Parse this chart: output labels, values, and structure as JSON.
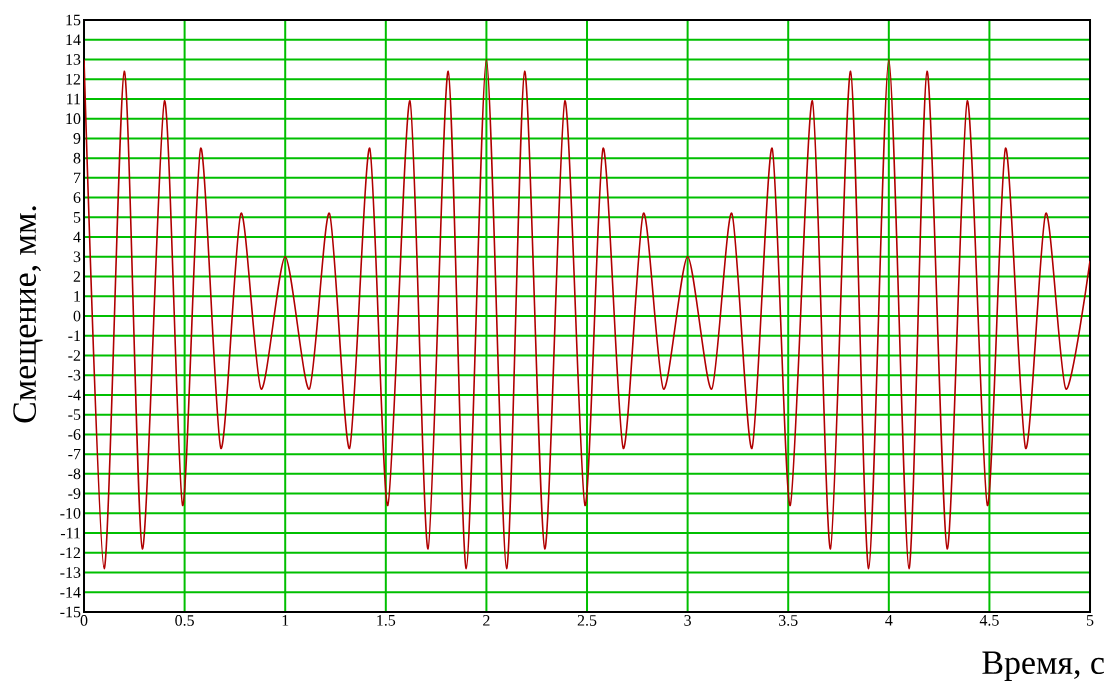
{
  "chart_data": {
    "type": "line",
    "xlabel": "Время, с",
    "ylabel": "Смещение, мм.",
    "xlim": [
      0,
      5
    ],
    "ylim": [
      -15,
      15
    ],
    "xticks": [
      0,
      0.5,
      1,
      1.5,
      2,
      2.5,
      3,
      3.5,
      4,
      4.5,
      5
    ],
    "yticks": [
      -15,
      -14,
      -13,
      -12,
      -11,
      -10,
      -9,
      -8,
      -7,
      -6,
      -5,
      -4,
      -3,
      -2,
      -1,
      0,
      1,
      2,
      3,
      4,
      5,
      6,
      7,
      8,
      9,
      10,
      11,
      12,
      13,
      14,
      15
    ],
    "grid": true,
    "marker": "none",
    "line_style": "solid",
    "series": [
      {
        "color": "#b00000",
        "x": [
          0,
          0.1,
          0.2,
          0.29,
          0.4,
          0.49,
          0.58,
          0.68,
          0.78,
          0.88,
          1.0,
          1.12,
          1.22,
          1.32,
          1.42,
          1.51,
          1.62,
          1.71,
          1.81,
          1.9,
          2.0,
          2.1,
          2.19,
          2.29,
          2.39,
          2.49,
          2.58,
          2.68,
          2.78,
          2.88,
          3.0,
          3.12,
          3.22,
          3.32,
          3.42,
          3.51,
          3.62,
          3.71,
          3.81,
          3.9,
          4.0,
          4.1,
          4.19,
          4.29,
          4.39,
          4.49,
          4.58,
          4.68,
          4.78,
          4.88,
          5.0
        ],
        "values": [
          13,
          -12.8,
          12.4,
          -11.8,
          10.9,
          -9.6,
          8.5,
          -6.7,
          5.2,
          -3.7,
          3,
          -3.7,
          5.2,
          -6.7,
          8.5,
          -9.6,
          10.9,
          -11.8,
          12.4,
          -12.8,
          13,
          -12.8,
          12.4,
          -11.8,
          10.9,
          -9.6,
          8.5,
          -6.7,
          5.2,
          -3.7,
          3,
          -3.7,
          5.2,
          -6.7,
          8.5,
          -9.6,
          10.9,
          -11.8,
          12.4,
          -12.8,
          13,
          -12.8,
          12.4,
          -11.8,
          10.9,
          -9.6,
          8.5,
          -6.7,
          5.2,
          -3.7,
          2.8
        ]
      }
    ]
  }
}
